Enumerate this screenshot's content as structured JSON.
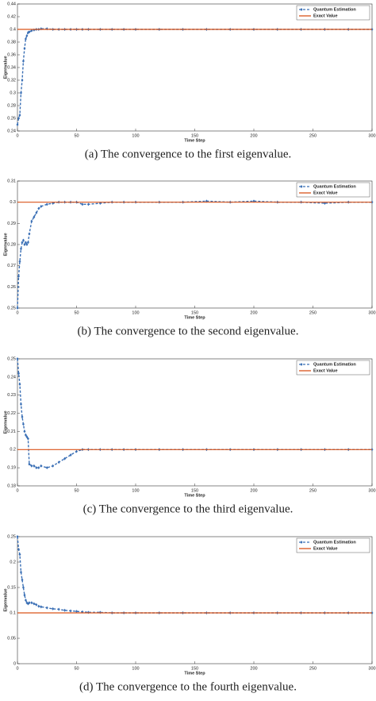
{
  "chart_data": [
    {
      "type": "line",
      "title": "(a) The convergence to the first eigenvalue.",
      "xlabel": "Time Step",
      "ylabel": "Eigenvalue",
      "x": [
        0,
        1,
        2,
        3,
        4,
        5,
        6,
        7,
        8,
        9,
        10,
        12,
        14,
        16,
        18,
        20,
        25,
        30,
        35,
        40,
        45,
        50,
        55,
        60,
        70,
        80,
        90,
        100,
        120,
        140,
        160,
        180,
        200,
        220,
        240,
        260,
        280,
        300
      ],
      "series": [
        {
          "name": "Quantum Estimation",
          "color": "#3a6fb5",
          "values": [
            0.25,
            0.26,
            0.265,
            0.3,
            0.32,
            0.35,
            0.37,
            0.385,
            0.39,
            0.395,
            0.396,
            0.398,
            0.399,
            0.4,
            0.4,
            0.401,
            0.401,
            0.4,
            0.4,
            0.4,
            0.4,
            0.4,
            0.4,
            0.4,
            0.4,
            0.4,
            0.4,
            0.4,
            0.4,
            0.4,
            0.4,
            0.4,
            0.4,
            0.4,
            0.4,
            0.4,
            0.4,
            0.4
          ]
        },
        {
          "name": "Exact Value",
          "color": "#d95319",
          "values": [
            0.4,
            0.4,
            0.4,
            0.4,
            0.4,
            0.4,
            0.4,
            0.4,
            0.4,
            0.4,
            0.4,
            0.4,
            0.4,
            0.4,
            0.4,
            0.4,
            0.4,
            0.4,
            0.4,
            0.4,
            0.4,
            0.4,
            0.4,
            0.4,
            0.4,
            0.4,
            0.4,
            0.4,
            0.4,
            0.4,
            0.4,
            0.4,
            0.4,
            0.4,
            0.4,
            0.4,
            0.4,
            0.4
          ]
        }
      ],
      "xlim": [
        0,
        300
      ],
      "xticks": [
        0,
        50,
        100,
        150,
        200,
        250,
        300
      ],
      "ylim": [
        0.24,
        0.44
      ],
      "yticks": [
        0.24,
        0.26,
        0.28,
        0.3,
        0.32,
        0.34,
        0.36,
        0.38,
        0.4,
        0.42,
        0.44
      ],
      "legend": "upper right"
    },
    {
      "type": "line",
      "title": "(b) The convergence to the second eigenvalue.",
      "xlabel": "Time Step",
      "ylabel": "Eigenvalue",
      "x": [
        0,
        1,
        2,
        3,
        4,
        5,
        6,
        7,
        8,
        9,
        10,
        12,
        14,
        16,
        18,
        20,
        25,
        30,
        35,
        40,
        45,
        50,
        55,
        60,
        70,
        80,
        90,
        100,
        120,
        140,
        160,
        180,
        200,
        220,
        240,
        260,
        280,
        300
      ],
      "series": [
        {
          "name": "Quantum Estimation",
          "color": "#3a6fb5",
          "values": [
            0.25,
            0.265,
            0.272,
            0.278,
            0.281,
            0.282,
            0.28,
            0.281,
            0.28,
            0.281,
            0.285,
            0.291,
            0.293,
            0.295,
            0.297,
            0.298,
            0.299,
            0.2995,
            0.3,
            0.3,
            0.3,
            0.3,
            0.299,
            0.299,
            0.2995,
            0.3,
            0.3,
            0.3,
            0.3,
            0.3,
            0.3005,
            0.3,
            0.3005,
            0.3,
            0.3,
            0.2995,
            0.3,
            0.3
          ]
        },
        {
          "name": "Exact Value",
          "color": "#d95319",
          "values": [
            0.3,
            0.3,
            0.3,
            0.3,
            0.3,
            0.3,
            0.3,
            0.3,
            0.3,
            0.3,
            0.3,
            0.3,
            0.3,
            0.3,
            0.3,
            0.3,
            0.3,
            0.3,
            0.3,
            0.3,
            0.3,
            0.3,
            0.3,
            0.3,
            0.3,
            0.3,
            0.3,
            0.3,
            0.3,
            0.3,
            0.3,
            0.3,
            0.3,
            0.3,
            0.3,
            0.3,
            0.3,
            0.3
          ]
        }
      ],
      "xlim": [
        0,
        300
      ],
      "xticks": [
        0,
        50,
        100,
        150,
        200,
        250,
        300
      ],
      "ylim": [
        0.25,
        0.31
      ],
      "yticks": [
        0.25,
        0.26,
        0.27,
        0.28,
        0.29,
        0.3,
        0.31
      ],
      "legend": "upper right"
    },
    {
      "type": "line",
      "title": "(c) The convergence to the third eigenvalue.",
      "xlabel": "Time Step",
      "ylabel": "Eigenvalue",
      "x": [
        0,
        1,
        2,
        3,
        4,
        5,
        6,
        7,
        8,
        9,
        10,
        12,
        14,
        16,
        18,
        20,
        25,
        30,
        35,
        40,
        45,
        50,
        55,
        60,
        70,
        80,
        90,
        100,
        120,
        140,
        160,
        180,
        200,
        220,
        240,
        260,
        280,
        300
      ],
      "series": [
        {
          "name": "Quantum Estimation",
          "color": "#3a6fb5",
          "values": [
            0.25,
            0.242,
            0.236,
            0.225,
            0.218,
            0.214,
            0.21,
            0.208,
            0.207,
            0.206,
            0.192,
            0.191,
            0.191,
            0.19,
            0.19,
            0.191,
            0.19,
            0.191,
            0.193,
            0.195,
            0.197,
            0.199,
            0.2,
            0.2,
            0.2,
            0.2,
            0.2,
            0.2,
            0.2,
            0.2,
            0.2,
            0.2,
            0.2,
            0.2,
            0.2,
            0.2,
            0.2,
            0.2
          ]
        },
        {
          "name": "Exact Value",
          "color": "#d95319",
          "values": [
            0.2,
            0.2,
            0.2,
            0.2,
            0.2,
            0.2,
            0.2,
            0.2,
            0.2,
            0.2,
            0.2,
            0.2,
            0.2,
            0.2,
            0.2,
            0.2,
            0.2,
            0.2,
            0.2,
            0.2,
            0.2,
            0.2,
            0.2,
            0.2,
            0.2,
            0.2,
            0.2,
            0.2,
            0.2,
            0.2,
            0.2,
            0.2,
            0.2,
            0.2,
            0.2,
            0.2,
            0.2,
            0.2
          ]
        }
      ],
      "xlim": [
        0,
        300
      ],
      "xticks": [
        0,
        50,
        100,
        150,
        200,
        250,
        300
      ],
      "ylim": [
        0.18,
        0.25
      ],
      "yticks": [
        0.18,
        0.19,
        0.2,
        0.21,
        0.22,
        0.23,
        0.24,
        0.25
      ],
      "legend": "upper right"
    },
    {
      "type": "line",
      "title": "(d) The convergence to the fourth eigenvalue.",
      "xlabel": "Time Step",
      "ylabel": "Eigenvalue",
      "x": [
        0,
        1,
        2,
        3,
        4,
        5,
        6,
        7,
        8,
        9,
        10,
        12,
        14,
        16,
        18,
        20,
        25,
        30,
        35,
        40,
        45,
        50,
        55,
        60,
        70,
        80,
        90,
        100,
        120,
        140,
        160,
        180,
        200,
        220,
        240,
        260,
        280,
        300
      ],
      "series": [
        {
          "name": "Quantum Estimation",
          "color": "#3a6fb5",
          "values": [
            0.25,
            0.225,
            0.215,
            0.18,
            0.165,
            0.15,
            0.135,
            0.125,
            0.12,
            0.118,
            0.12,
            0.12,
            0.118,
            0.116,
            0.113,
            0.112,
            0.11,
            0.108,
            0.107,
            0.105,
            0.104,
            0.103,
            0.102,
            0.101,
            0.101,
            0.1,
            0.1,
            0.1,
            0.1,
            0.1,
            0.1,
            0.1,
            0.1,
            0.1,
            0.1,
            0.1,
            0.1,
            0.1
          ]
        },
        {
          "name": "Exact Value",
          "color": "#d95319",
          "values": [
            0.1,
            0.1,
            0.1,
            0.1,
            0.1,
            0.1,
            0.1,
            0.1,
            0.1,
            0.1,
            0.1,
            0.1,
            0.1,
            0.1,
            0.1,
            0.1,
            0.1,
            0.1,
            0.1,
            0.1,
            0.1,
            0.1,
            0.1,
            0.1,
            0.1,
            0.1,
            0.1,
            0.1,
            0.1,
            0.1,
            0.1,
            0.1,
            0.1,
            0.1,
            0.1,
            0.1,
            0.1,
            0.1
          ]
        }
      ],
      "xlim": [
        0,
        300
      ],
      "xticks": [
        0,
        50,
        100,
        150,
        200,
        250,
        300
      ],
      "ylim": [
        0,
        0.25
      ],
      "yticks": [
        0,
        0.05,
        0.1,
        0.15,
        0.2,
        0.25
      ],
      "legend": "upper right"
    }
  ]
}
